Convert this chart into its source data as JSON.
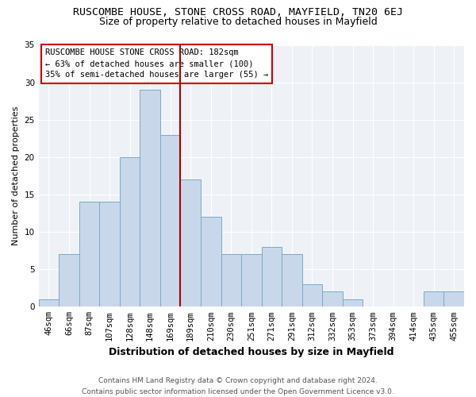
{
  "title": "RUSCOMBE HOUSE, STONE CROSS ROAD, MAYFIELD, TN20 6EJ",
  "subtitle": "Size of property relative to detached houses in Mayfield",
  "xlabel": "Distribution of detached houses by size in Mayfield",
  "ylabel": "Number of detached properties",
  "footnote": "Contains HM Land Registry data © Crown copyright and database right 2024.\nContains public sector information licensed under the Open Government Licence v3.0.",
  "bin_labels": [
    "46sqm",
    "66sqm",
    "87sqm",
    "107sqm",
    "128sqm",
    "148sqm",
    "169sqm",
    "189sqm",
    "210sqm",
    "230sqm",
    "251sqm",
    "271sqm",
    "291sqm",
    "312sqm",
    "332sqm",
    "353sqm",
    "373sqm",
    "394sqm",
    "414sqm",
    "435sqm",
    "455sqm"
  ],
  "counts": [
    1,
    7,
    14,
    14,
    20,
    29,
    23,
    17,
    12,
    7,
    7,
    8,
    7,
    3,
    2,
    1,
    0,
    0,
    0,
    2,
    2
  ],
  "bar_color": "#c8d8ea",
  "bar_edge_color": "#7aaac8",
  "vline_x_idx": 7,
  "vline_color": "#aa0000",
  "annotation_text": "RUSCOMBE HOUSE STONE CROSS ROAD: 182sqm\n← 63% of detached houses are smaller (100)\n35% of semi-detached houses are larger (55) →",
  "annotation_box_color": "#ffffff",
  "annotation_box_edge": "#cc0000",
  "ylim": [
    0,
    35
  ],
  "yticks": [
    0,
    5,
    10,
    15,
    20,
    25,
    30,
    35
  ],
  "background_color": "#eef2f7",
  "title_fontsize": 9.5,
  "subtitle_fontsize": 9,
  "xlabel_fontsize": 9,
  "ylabel_fontsize": 8,
  "tick_fontsize": 7.5,
  "annotation_fontsize": 7.5,
  "footnote_fontsize": 6.5
}
